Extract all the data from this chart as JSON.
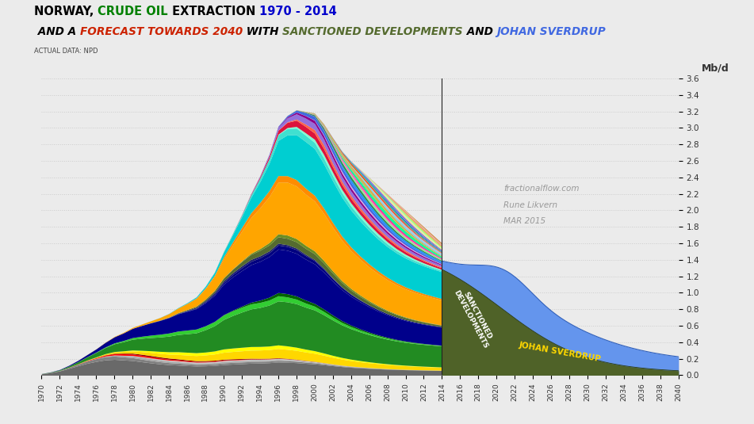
{
  "title_line1": [
    {
      "text": "NORWAY, ",
      "color": "#000000"
    },
    {
      "text": "CRUDE OIL",
      "color": "#008000"
    },
    {
      "text": " EXTRACTION ",
      "color": "#000000"
    },
    {
      "text": "1970 - 2014",
      "color": "#0000CC"
    }
  ],
  "title_line2": [
    {
      "text": " AND A ",
      "color": "#000000"
    },
    {
      "text": "FORECAST TOWARDS 2040",
      "color": "#CC2200"
    },
    {
      "text": " WITH ",
      "color": "#000000"
    },
    {
      "text": "SANCTIONED DEVELOPMENTS",
      "color": "#556B2F"
    },
    {
      "text": " AND ",
      "color": "#000000"
    },
    {
      "text": "JOHAN SVERDRUP",
      "color": "#4169E1"
    }
  ],
  "subtitle": "ACTUAL DATA: NPD",
  "ylabel": "Mb/d",
  "background_color": "#EBEBEB",
  "watermark_line1": "fractionalflow.com",
  "watermark_line2": "Rune Likvern",
  "watermark_line3": "MAR 2015",
  "sanctioned_label": "SANCTIONED\nDEVELOPMENTS",
  "sverdrup_label": "JOHAN SVERDRUP",
  "sanctioned_color": "#4F6228",
  "sverdrup_color": "#6495ED",
  "layer_colors": [
    "#696969",
    "#808080",
    "#A9A9A9",
    "#C8C8C8",
    "#FF0000",
    "#8B0000",
    "#FFD700",
    "#FFFF00",
    "#228B22",
    "#32CD32",
    "#006400",
    "#00008B",
    "#000080",
    "#191970",
    "#556B2F",
    "#6B8E23",
    "#FFA500",
    "#FF8C00",
    "#00CED1",
    "#40E0D0",
    "#7FFFD4",
    "#DC143C",
    "#FF6347",
    "#9370DB",
    "#8B008B",
    "#DDA0DD",
    "#4169E1",
    "#1E90FF",
    "#2E8B57",
    "#90EE90",
    "#FF69B4",
    "#FF1493",
    "#00FA9A",
    "#00FF7F",
    "#BDB76B",
    "#DAA520",
    "#87CEEB",
    "#B0C4DE",
    "#FF4500",
    "#CD5C5C",
    "#20B2AA",
    "#008B8B",
    "#7B68EE",
    "#6A5ACD",
    "#F0E68C",
    "#EEE8AA",
    "#98FB98",
    "#ADFF2F",
    "#FA8072",
    "#E9967A",
    "#DEB887",
    "#D2691E"
  ]
}
